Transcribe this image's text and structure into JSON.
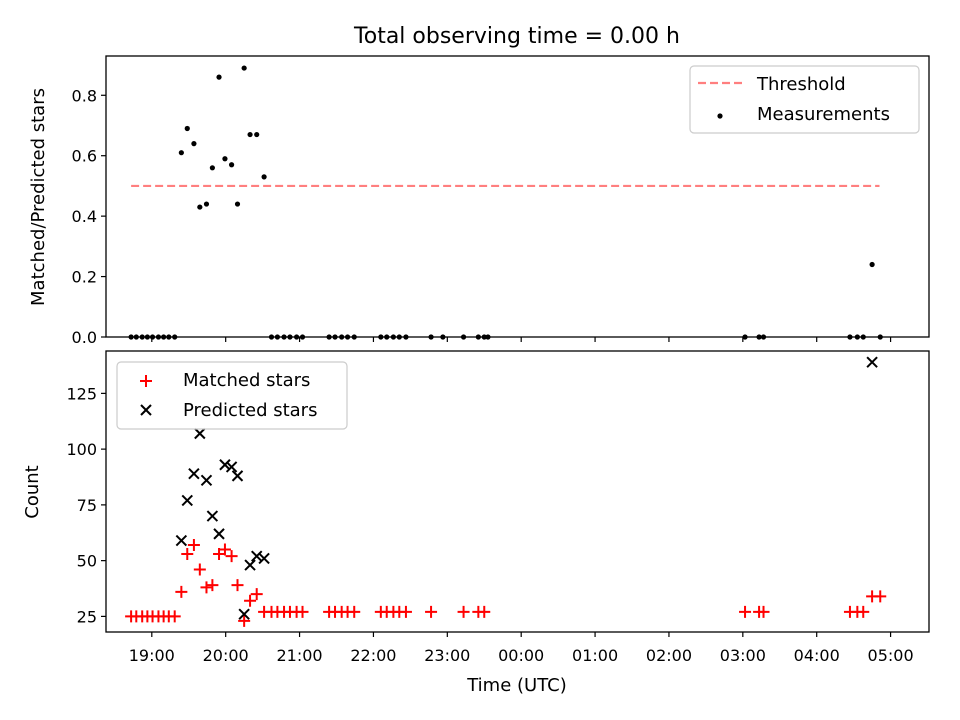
{
  "chart_data": [
    {
      "type": "scatter",
      "title": "Total observing time = 0.00 h",
      "xlabel": "",
      "ylabel": "Matched/Predicted stars",
      "x_unit": "hours since 18:00 UTC",
      "xlim": [
        0.38,
        11.52
      ],
      "ylim": [
        0.0,
        0.93
      ],
      "yticks": [
        0.0,
        0.2,
        0.4,
        0.6,
        0.8
      ],
      "ytick_labels": [
        "0.0",
        "0.2",
        "0.4",
        "0.6",
        "0.8"
      ],
      "xticks": [
        1,
        2,
        3,
        4,
        5,
        6,
        7,
        8,
        9,
        10,
        11
      ],
      "grid": false,
      "legend": {
        "position": "upper right",
        "entries": [
          "Threshold",
          "Measurements"
        ]
      },
      "series": [
        {
          "name": "Threshold",
          "style": "dashed-line",
          "color": "#ff7f7f",
          "x": [
            0.72,
            10.85
          ],
          "y": [
            0.5,
            0.5
          ]
        },
        {
          "name": "Measurements",
          "style": "dot",
          "color": "#000000",
          "x": [
            0.72,
            0.79,
            0.87,
            0.94,
            1.01,
            1.09,
            1.16,
            1.23,
            1.31,
            1.4,
            1.48,
            1.57,
            1.65,
            1.74,
            1.82,
            1.91,
            1.99,
            2.08,
            2.16,
            2.25,
            2.33,
            2.42,
            2.52,
            2.62,
            2.7,
            2.79,
            2.87,
            2.96,
            3.04,
            3.4,
            3.48,
            3.57,
            3.65,
            3.74,
            4.1,
            4.18,
            4.27,
            4.35,
            4.44,
            4.78,
            4.94,
            5.22,
            5.42,
            5.5,
            5.55,
            9.03,
            9.22,
            9.28,
            10.45,
            10.55,
            10.63,
            10.75,
            10.86
          ],
          "y": [
            0,
            0,
            0,
            0,
            0,
            0,
            0,
            0,
            0,
            0.61,
            0.69,
            0.64,
            0.43,
            0.44,
            0.56,
            0.86,
            0.59,
            0.57,
            0.44,
            0.89,
            0.67,
            0.67,
            0.53,
            0,
            0,
            0,
            0,
            0,
            0,
            0,
            0,
            0,
            0,
            0,
            0,
            0,
            0,
            0,
            0,
            0,
            0,
            0,
            0,
            0,
            0,
            0,
            0,
            0,
            0,
            0,
            0,
            0.24,
            0
          ]
        }
      ]
    },
    {
      "type": "scatter",
      "title": "",
      "xlabel": "Time (UTC)",
      "ylabel": "Count",
      "x_unit": "hours since 18:00 UTC",
      "xlim": [
        0.38,
        11.52
      ],
      "ylim": [
        18,
        144
      ],
      "yticks": [
        25,
        50,
        75,
        100,
        125
      ],
      "ytick_labels": [
        "25",
        "50",
        "75",
        "100",
        "125"
      ],
      "xticks": [
        1,
        2,
        3,
        4,
        5,
        6,
        7,
        8,
        9,
        10,
        11
      ],
      "xtick_labels": [
        "19:00",
        "20:00",
        "21:00",
        "22:00",
        "23:00",
        "00:00",
        "01:00",
        "02:00",
        "03:00",
        "04:00",
        "05:00"
      ],
      "grid": false,
      "legend": {
        "position": "upper left",
        "entries": [
          "Matched stars",
          "Predicted stars"
        ]
      },
      "series": [
        {
          "name": "Matched stars",
          "marker": "plus",
          "color": "#ff0000",
          "x": [
            0.72,
            0.79,
            0.87,
            0.94,
            1.01,
            1.09,
            1.16,
            1.23,
            1.31,
            1.4,
            1.48,
            1.57,
            1.65,
            1.74,
            1.82,
            1.91,
            1.99,
            2.08,
            2.16,
            2.25,
            2.33,
            2.42,
            2.52,
            2.62,
            2.7,
            2.79,
            2.87,
            2.96,
            3.04,
            3.4,
            3.48,
            3.57,
            3.65,
            3.74,
            4.1,
            4.18,
            4.27,
            4.35,
            4.44,
            4.78,
            5.22,
            5.42,
            5.5,
            9.03,
            9.22,
            9.28,
            10.45,
            10.55,
            10.63,
            10.75,
            10.86
          ],
          "y": [
            25,
            25,
            25,
            25,
            25,
            25,
            25,
            25,
            25,
            36,
            53,
            57,
            46,
            38,
            39,
            53,
            55,
            52,
            39,
            23,
            32,
            35,
            27,
            27,
            27,
            27,
            27,
            27,
            27,
            27,
            27,
            27,
            27,
            27,
            27,
            27,
            27,
            27,
            27,
            27,
            27,
            27,
            27,
            27,
            27,
            27,
            27,
            27,
            27,
            34,
            34
          ]
        },
        {
          "name": "Predicted stars",
          "marker": "x",
          "color": "#000000",
          "x": [
            1.4,
            1.48,
            1.57,
            1.65,
            1.74,
            1.82,
            1.91,
            1.99,
            2.08,
            2.16,
            2.25,
            2.33,
            2.42,
            2.52,
            10.75
          ],
          "y": [
            59,
            77,
            89,
            107,
            86,
            70,
            62,
            93,
            92,
            88,
            26,
            48,
            52,
            51,
            139
          ]
        }
      ]
    }
  ]
}
